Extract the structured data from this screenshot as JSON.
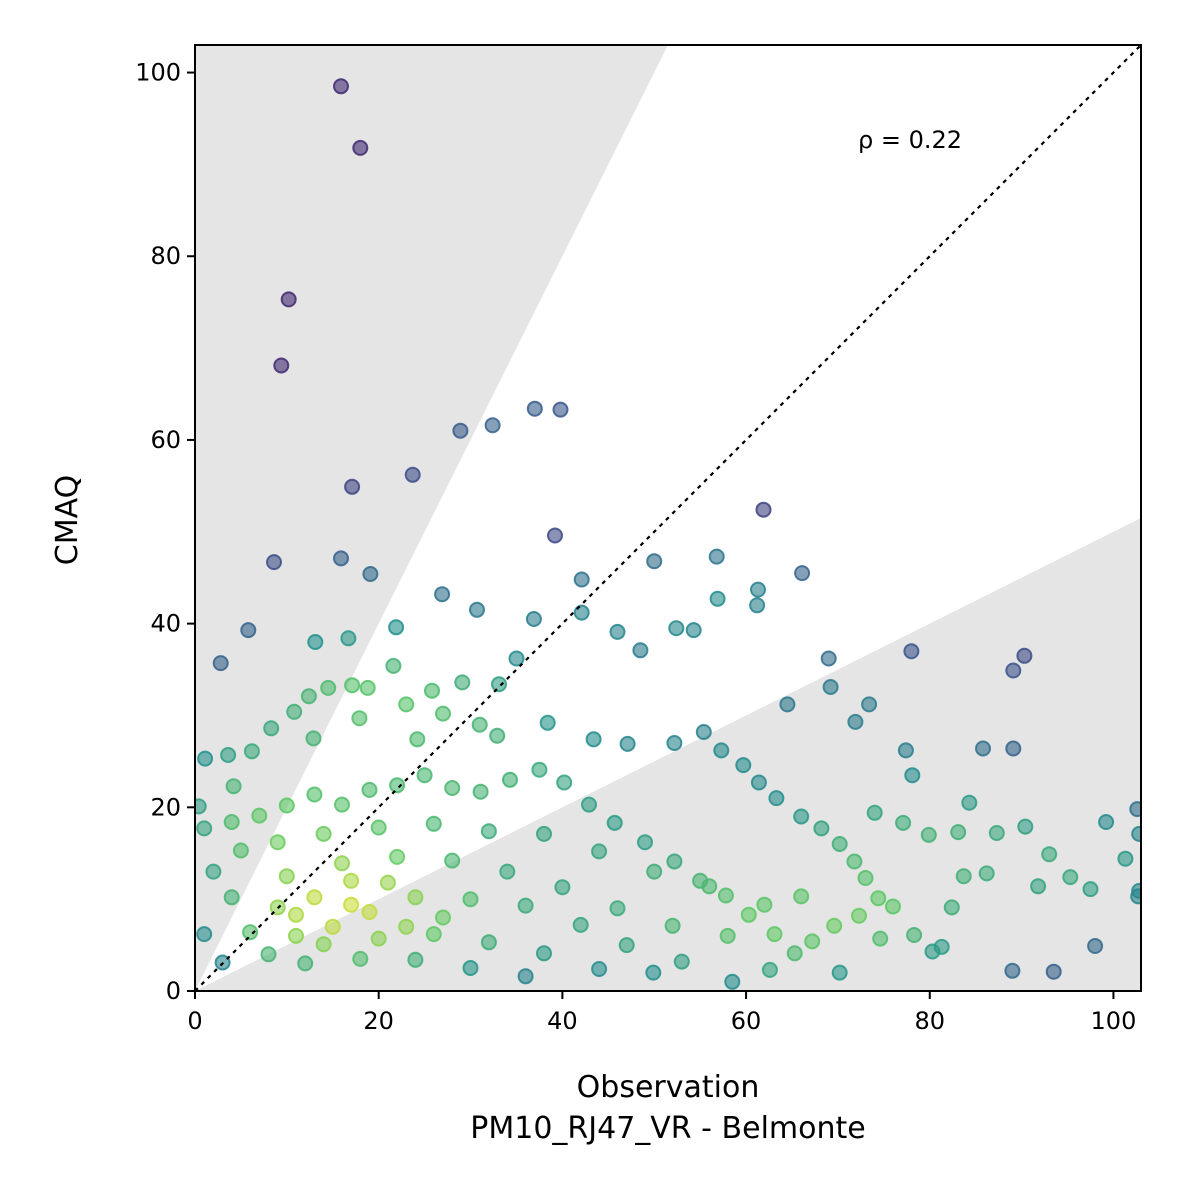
{
  "chart_data": {
    "type": "scatter",
    "title": "",
    "xlabel": "Observation",
    "xlabel_sub": "PM10_RJ47_VR - Belmonte",
    "ylabel": "CMAQ",
    "xlim": [
      0,
      103
    ],
    "ylim": [
      0,
      103
    ],
    "xticks": [
      0,
      20,
      40,
      60,
      80,
      100
    ],
    "yticks": [
      0,
      20,
      40,
      60,
      80,
      100
    ],
    "annotation": "ρ = 0.22",
    "reference_line": "1:1 dotted",
    "shaded_regions": "outside factor-of-2 band (y > 2x and y < 0.5x)",
    "colormap": "viridis (point density)",
    "colors": {
      "shade": "#e5e5e5",
      "low_density": "#472c7a",
      "high_density": "#e1e418"
    },
    "points": [
      [
        15.9,
        98.5
      ],
      [
        18.0,
        91.8
      ],
      [
        10.2,
        75.3
      ],
      [
        9.4,
        68.1
      ],
      [
        37.0,
        63.4
      ],
      [
        39.8,
        63.3
      ],
      [
        32.4,
        61.6
      ],
      [
        28.9,
        61.0
      ],
      [
        23.7,
        56.2
      ],
      [
        17.1,
        54.9
      ],
      [
        61.9,
        52.4
      ],
      [
        39.2,
        49.6
      ],
      [
        15.9,
        47.1
      ],
      [
        8.6,
        46.7
      ],
      [
        50.0,
        46.8
      ],
      [
        56.8,
        47.3
      ],
      [
        66.1,
        45.5
      ],
      [
        19.1,
        45.4
      ],
      [
        42.1,
        44.8
      ],
      [
        61.3,
        43.7
      ],
      [
        56.9,
        42.7
      ],
      [
        61.2,
        42.0
      ],
      [
        78.0,
        37.0
      ],
      [
        90.3,
        36.5
      ],
      [
        69.0,
        36.2
      ],
      [
        89.1,
        34.9
      ],
      [
        2.8,
        35.7
      ],
      [
        5.8,
        39.3
      ],
      [
        13.1,
        38.0
      ],
      [
        16.7,
        38.4
      ],
      [
        21.9,
        39.6
      ],
      [
        26.9,
        43.2
      ],
      [
        30.7,
        41.5
      ],
      [
        36.9,
        40.5
      ],
      [
        42.1,
        41.2
      ],
      [
        46.0,
        39.1
      ],
      [
        48.5,
        37.1
      ],
      [
        52.4,
        39.5
      ],
      [
        54.3,
        39.3
      ],
      [
        73.4,
        31.2
      ],
      [
        69.2,
        33.1
      ],
      [
        64.5,
        31.2
      ],
      [
        71.9,
        29.3
      ],
      [
        77.4,
        26.2
      ],
      [
        78.1,
        23.5
      ],
      [
        84.3,
        20.5
      ],
      [
        89.1,
        26.4
      ],
      [
        85.8,
        26.4
      ],
      [
        74.0,
        19.4
      ],
      [
        77.1,
        18.3
      ],
      [
        79.9,
        17.0
      ],
      [
        83.1,
        17.3
      ],
      [
        87.3,
        17.2
      ],
      [
        90.4,
        17.9
      ],
      [
        99.2,
        18.4
      ],
      [
        102.6,
        19.8
      ],
      [
        102.8,
        17.1
      ],
      [
        93.0,
        14.9
      ],
      [
        101.3,
        14.4
      ],
      [
        95.3,
        12.4
      ],
      [
        97.5,
        11.1
      ],
      [
        91.8,
        11.4
      ],
      [
        86.2,
        12.8
      ],
      [
        83.7,
        12.5
      ],
      [
        82.4,
        9.1
      ],
      [
        80.3,
        4.3
      ],
      [
        81.3,
        4.8
      ],
      [
        89.0,
        2.2
      ],
      [
        93.5,
        2.1
      ],
      [
        98.0,
        4.9
      ],
      [
        102.7,
        10.3
      ],
      [
        102.8,
        10.9
      ],
      [
        70.2,
        2.0
      ],
      [
        62.6,
        2.3
      ],
      [
        58.5,
        1.0
      ],
      [
        49.9,
        2.0
      ],
      [
        74.6,
        5.7
      ],
      [
        78.3,
        6.1
      ],
      [
        35.0,
        36.2
      ],
      [
        33.1,
        33.4
      ],
      [
        31.0,
        29.0
      ],
      [
        29.1,
        33.6
      ],
      [
        27.0,
        30.2
      ],
      [
        25.8,
        32.7
      ],
      [
        23.0,
        31.2
      ],
      [
        21.6,
        35.4
      ],
      [
        18.8,
        33.0
      ],
      [
        17.1,
        33.3
      ],
      [
        14.5,
        33.0
      ],
      [
        12.4,
        32.1
      ],
      [
        10.8,
        30.4
      ],
      [
        8.3,
        28.6
      ],
      [
        6.2,
        26.1
      ],
      [
        3.6,
        25.7
      ],
      [
        1.1,
        25.3
      ],
      [
        4.2,
        22.3
      ],
      [
        12.9,
        27.5
      ],
      [
        17.9,
        29.7
      ],
      [
        24.2,
        27.4
      ],
      [
        32.9,
        27.8
      ],
      [
        38.4,
        29.2
      ],
      [
        43.4,
        27.4
      ],
      [
        47.1,
        26.9
      ],
      [
        52.2,
        27.0
      ],
      [
        55.4,
        28.2
      ],
      [
        57.3,
        26.2
      ],
      [
        59.7,
        24.6
      ],
      [
        61.4,
        22.7
      ],
      [
        63.3,
        21.0
      ],
      [
        66.0,
        19.0
      ],
      [
        68.2,
        17.7
      ],
      [
        70.2,
        16.0
      ],
      [
        71.8,
        14.1
      ],
      [
        73.0,
        12.3
      ],
      [
        74.4,
        10.1
      ],
      [
        76.0,
        9.2
      ],
      [
        72.3,
        8.2
      ],
      [
        69.6,
        7.1
      ],
      [
        67.2,
        5.4
      ],
      [
        65.3,
        4.1
      ],
      [
        63.1,
        6.2
      ],
      [
        60.3,
        8.3
      ],
      [
        57.8,
        10.4
      ],
      [
        55.0,
        12.0
      ],
      [
        52.2,
        14.1
      ],
      [
        49.0,
        16.2
      ],
      [
        45.7,
        18.3
      ],
      [
        42.9,
        20.3
      ],
      [
        40.2,
        22.7
      ],
      [
        37.5,
        24.1
      ],
      [
        34.3,
        23.0
      ],
      [
        31.1,
        21.7
      ],
      [
        28.0,
        22.1
      ],
      [
        25.0,
        23.5
      ],
      [
        22.0,
        22.4
      ],
      [
        19.0,
        21.9
      ],
      [
        16.0,
        20.3
      ],
      [
        13.0,
        21.4
      ],
      [
        10.0,
        20.2
      ],
      [
        7.0,
        19.1
      ],
      [
        4.0,
        18.4
      ],
      [
        1.0,
        17.7
      ],
      [
        0.4,
        20.1
      ],
      [
        2.0,
        13.0
      ],
      [
        5.0,
        15.3
      ],
      [
        9.0,
        16.2
      ],
      [
        14.0,
        17.1
      ],
      [
        20.0,
        17.8
      ],
      [
        26.0,
        18.2
      ],
      [
        32.0,
        17.4
      ],
      [
        38.0,
        17.1
      ],
      [
        44.0,
        15.2
      ],
      [
        50.0,
        13.0
      ],
      [
        56.0,
        11.4
      ],
      [
        62.0,
        9.4
      ],
      [
        66.0,
        10.3
      ],
      [
        58.0,
        6.0
      ],
      [
        52.0,
        7.1
      ],
      [
        46.0,
        9.0
      ],
      [
        40.0,
        11.3
      ],
      [
        34.0,
        13.0
      ],
      [
        28.0,
        14.2
      ],
      [
        22.0,
        14.6
      ],
      [
        16.0,
        13.9
      ],
      [
        10.0,
        12.5
      ],
      [
        4.0,
        10.2
      ],
      [
        1.0,
        6.2
      ],
      [
        3.0,
        3.1
      ],
      [
        6.0,
        6.4
      ],
      [
        11.0,
        8.3
      ],
      [
        17.0,
        9.4
      ],
      [
        24.0,
        10.2
      ],
      [
        30.0,
        10.0
      ],
      [
        36.0,
        9.3
      ],
      [
        42.0,
        7.2
      ],
      [
        47.0,
        5.0
      ],
      [
        53.0,
        3.2
      ],
      [
        44.0,
        2.4
      ],
      [
        38.0,
        4.1
      ],
      [
        32.0,
        5.3
      ],
      [
        26.0,
        6.2
      ],
      [
        20.0,
        5.7
      ],
      [
        14.0,
        5.1
      ],
      [
        8.0,
        4.0
      ],
      [
        12.0,
        3.0
      ],
      [
        18.0,
        3.5
      ],
      [
        24.0,
        3.4
      ],
      [
        30.0,
        2.5
      ],
      [
        36.0,
        1.6
      ],
      [
        15.0,
        7.0
      ],
      [
        19.0,
        8.6
      ],
      [
        13.0,
        10.2
      ],
      [
        21.0,
        11.8
      ],
      [
        9.0,
        9.1
      ],
      [
        27.0,
        8.0
      ],
      [
        17.0,
        12.0
      ],
      [
        23.0,
        7.0
      ],
      [
        11.0,
        6.0
      ]
    ]
  }
}
